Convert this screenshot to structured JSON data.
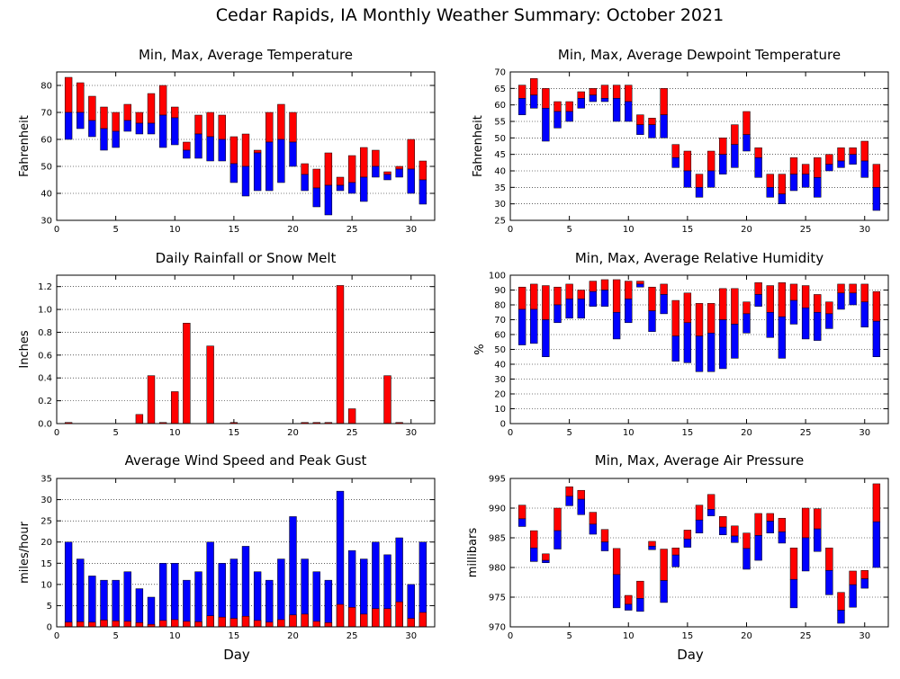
{
  "title": "Cedar Rapids, IA Monthly Weather Summary: October 2021",
  "colors": {
    "max": "#ff0000",
    "min": "#0000ff",
    "edge": "#000000"
  },
  "chart_data": [
    {
      "id": "temperature",
      "type": "bar",
      "title": "Min, Max, Average Temperature",
      "xlabel": "",
      "ylabel": "Fahrenheit",
      "xlim": [
        0,
        32
      ],
      "xticks": [
        0,
        5,
        10,
        15,
        20,
        25,
        30
      ],
      "ylim": [
        30,
        85
      ],
      "yticks": [
        30,
        40,
        50,
        60,
        70,
        80
      ],
      "x": [
        1,
        2,
        3,
        4,
        5,
        6,
        7,
        8,
        9,
        10,
        11,
        12,
        13,
        14,
        15,
        16,
        17,
        18,
        19,
        20,
        21,
        22,
        23,
        24,
        25,
        26,
        27,
        28,
        29,
        30,
        31
      ],
      "series": [
        {
          "name": "max",
          "values": [
            83,
            81,
            76,
            72,
            70,
            73,
            70,
            77,
            80,
            72,
            59,
            69,
            70,
            69,
            61,
            62,
            56,
            70,
            73,
            70,
            51,
            49,
            55,
            46,
            54,
            57,
            56,
            48,
            50,
            60,
            52
          ]
        },
        {
          "name": "avg",
          "values": [
            70,
            70,
            67,
            64,
            63,
            67,
            66,
            66,
            69,
            68,
            56,
            62,
            61,
            60,
            51,
            50,
            55,
            59,
            60,
            59,
            47,
            42,
            43,
            43,
            44,
            46,
            50,
            47,
            49,
            49,
            45
          ]
        },
        {
          "name": "min",
          "values": [
            60,
            64,
            61,
            56,
            57,
            63,
            62,
            62,
            57,
            58,
            53,
            53,
            52,
            52,
            44,
            39,
            41,
            41,
            44,
            50,
            41,
            35,
            32,
            41,
            40,
            37,
            46,
            45,
            46,
            40,
            36
          ]
        }
      ]
    },
    {
      "id": "dewpoint",
      "type": "bar",
      "title": "Min, Max, Average Dewpoint Temperature",
      "xlabel": "",
      "ylabel": "Fahrenheit",
      "xlim": [
        0,
        32
      ],
      "xticks": [
        0,
        5,
        10,
        15,
        20,
        25,
        30
      ],
      "ylim": [
        25,
        70
      ],
      "yticks": [
        25,
        30,
        35,
        40,
        45,
        50,
        55,
        60,
        65,
        70
      ],
      "x": [
        1,
        2,
        3,
        4,
        5,
        6,
        7,
        8,
        9,
        10,
        11,
        12,
        13,
        14,
        15,
        16,
        17,
        18,
        19,
        20,
        21,
        22,
        23,
        24,
        25,
        26,
        27,
        28,
        29,
        30,
        31
      ],
      "series": [
        {
          "name": "max",
          "values": [
            66,
            68,
            65,
            61,
            61,
            64,
            65,
            66,
            66,
            66,
            57,
            56,
            65,
            48,
            46,
            39,
            46,
            50,
            54,
            58,
            47,
            39,
            39,
            44,
            42,
            44,
            45,
            47,
            47,
            49,
            42
          ]
        },
        {
          "name": "avg",
          "values": [
            62,
            63,
            59,
            58,
            58,
            62,
            63,
            62,
            62,
            61,
            54,
            54,
            57,
            44,
            40,
            35,
            40,
            45,
            48,
            51,
            44,
            35,
            33,
            39,
            39,
            38,
            42,
            43,
            45,
            43,
            35
          ]
        },
        {
          "name": "min",
          "values": [
            57,
            59,
            49,
            53,
            55,
            59,
            61,
            61,
            55,
            55,
            51,
            50,
            50,
            41,
            35,
            32,
            35,
            39,
            41,
            46,
            38,
            32,
            30,
            34,
            35,
            32,
            40,
            41,
            42,
            38,
            28
          ]
        }
      ]
    },
    {
      "id": "rainfall",
      "type": "bar",
      "title": "Daily Rainfall or Snow Melt",
      "xlabel": "",
      "ylabel": "Inches",
      "xlim": [
        0,
        32
      ],
      "xticks": [
        0,
        5,
        10,
        15,
        20,
        25,
        30
      ],
      "ylim": [
        0,
        1.3
      ],
      "yticks": [
        0.0,
        0.2,
        0.4,
        0.6,
        0.8,
        1.0,
        1.2
      ],
      "x": [
        1,
        2,
        3,
        4,
        5,
        6,
        7,
        8,
        9,
        10,
        11,
        12,
        13,
        14,
        15,
        16,
        17,
        18,
        19,
        20,
        21,
        22,
        23,
        24,
        25,
        26,
        27,
        28,
        29,
        30,
        31
      ],
      "values": [
        0.01,
        0,
        0,
        0,
        0,
        0,
        0.08,
        0.42,
        0.01,
        0.28,
        0.88,
        0,
        0.68,
        0,
        0.01,
        0,
        0,
        0,
        0,
        0,
        0.01,
        0.01,
        0.01,
        1.21,
        0.13,
        0,
        0,
        0.42,
        0.01,
        0,
        0
      ]
    },
    {
      "id": "humidity",
      "type": "bar",
      "title": "Min, Max, Average Relative Humidity",
      "xlabel": "",
      "ylabel": "%",
      "xlim": [
        0,
        32
      ],
      "xticks": [
        0,
        5,
        10,
        15,
        20,
        25,
        30
      ],
      "ylim": [
        0,
        100
      ],
      "yticks": [
        0,
        10,
        20,
        30,
        40,
        50,
        60,
        70,
        80,
        90,
        100
      ],
      "x": [
        1,
        2,
        3,
        4,
        5,
        6,
        7,
        8,
        9,
        10,
        11,
        12,
        13,
        14,
        15,
        16,
        17,
        18,
        19,
        20,
        21,
        22,
        23,
        24,
        25,
        26,
        27,
        28,
        29,
        30,
        31
      ],
      "series": [
        {
          "name": "max",
          "values": [
            92,
            94,
            93,
            92,
            94,
            90,
            96,
            97,
            97,
            96,
            96,
            92,
            94,
            83,
            88,
            81,
            81,
            91,
            91,
            82,
            95,
            93,
            95,
            94,
            93,
            87,
            82,
            94,
            94,
            94,
            89
          ]
        },
        {
          "name": "avg",
          "values": [
            77,
            77,
            70,
            80,
            84,
            84,
            89,
            90,
            75,
            84,
            94,
            76,
            87,
            59,
            68,
            59,
            61,
            70,
            67,
            74,
            87,
            75,
            72,
            83,
            78,
            75,
            74,
            88,
            88,
            82,
            69
          ]
        },
        {
          "name": "min",
          "values": [
            53,
            54,
            45,
            68,
            71,
            71,
            79,
            79,
            57,
            68,
            92,
            62,
            74,
            42,
            41,
            35,
            35,
            37,
            44,
            61,
            79,
            58,
            44,
            67,
            57,
            56,
            64,
            77,
            80,
            65,
            45
          ]
        }
      ]
    },
    {
      "id": "wind",
      "type": "bar",
      "title": "Average Wind Speed and Peak Gust",
      "xlabel": "Day",
      "ylabel": "miles/hour",
      "xlim": [
        0,
        32
      ],
      "xticks": [
        0,
        5,
        10,
        15,
        20,
        25,
        30
      ],
      "ylim": [
        0,
        35
      ],
      "yticks": [
        0,
        5,
        10,
        15,
        20,
        25,
        30,
        35
      ],
      "x": [
        1,
        2,
        3,
        4,
        5,
        6,
        7,
        8,
        9,
        10,
        11,
        12,
        13,
        14,
        15,
        16,
        17,
        18,
        19,
        20,
        21,
        22,
        23,
        24,
        25,
        26,
        27,
        28,
        29,
        30,
        31
      ],
      "series": [
        {
          "name": "peak gust",
          "values": [
            20,
            16,
            12,
            11,
            11,
            13,
            9,
            7,
            15,
            15,
            11,
            13,
            20,
            15,
            16,
            19,
            13,
            11,
            16,
            26,
            16,
            13,
            11,
            32,
            18,
            16,
            20,
            17,
            21,
            10,
            20
          ]
        },
        {
          "name": "average speed",
          "values": [
            1.1,
            1.2,
            1.1,
            1.6,
            1.4,
            1.3,
            1.0,
            0.6,
            1.5,
            1.7,
            1.3,
            1.2,
            2.6,
            2.3,
            2.0,
            2.5,
            1.5,
            1.1,
            1.7,
            2.8,
            3.0,
            1.3,
            1.0,
            5.3,
            4.6,
            3.0,
            4.3,
            4.3,
            5.9,
            2.0,
            3.4
          ]
        }
      ]
    },
    {
      "id": "pressure",
      "type": "bar",
      "title": "Min, Max, Average Air Pressure",
      "xlabel": "Day",
      "ylabel": "millibars",
      "xlim": [
        0,
        32
      ],
      "xticks": [
        0,
        5,
        10,
        15,
        20,
        25,
        30
      ],
      "ylim": [
        970,
        995
      ],
      "yticks": [
        970,
        975,
        980,
        985,
        990,
        995
      ],
      "x": [
        1,
        2,
        3,
        4,
        5,
        6,
        7,
        8,
        9,
        10,
        11,
        12,
        13,
        14,
        15,
        16,
        17,
        18,
        19,
        20,
        21,
        22,
        23,
        24,
        25,
        26,
        27,
        28,
        29,
        30,
        31
      ],
      "series": [
        {
          "name": "max",
          "values": [
            990.5,
            986.2,
            982.3,
            990.0,
            993.6,
            993.0,
            989.3,
            986.4,
            983.2,
            975.3,
            977.7,
            984.4,
            983.1,
            983.3,
            986.3,
            990.5,
            992.3,
            988.6,
            987.0,
            985.8,
            989.1,
            989.1,
            988.3,
            983.3,
            990.0,
            989.9,
            983.3,
            975.8,
            979.4,
            979.5,
            994.1
          ]
        },
        {
          "name": "avg",
          "values": [
            988.2,
            983.3,
            981.2,
            986.2,
            992.0,
            991.5,
            987.3,
            984.3,
            978.8,
            973.8,
            974.8,
            983.6,
            977.8,
            982.1,
            984.8,
            988.0,
            989.8,
            986.8,
            985.3,
            983.2,
            985.4,
            987.8,
            986.0,
            978.0,
            985.0,
            986.5,
            979.5,
            972.8,
            977.1,
            978.1,
            987.7
          ]
        },
        {
          "name": "min",
          "values": [
            986.9,
            981.0,
            980.8,
            983.1,
            990.4,
            988.9,
            985.6,
            982.8,
            973.2,
            972.8,
            972.6,
            983.0,
            974.1,
            980.1,
            983.4,
            985.8,
            988.7,
            985.5,
            984.2,
            979.7,
            981.2,
            985.8,
            984.1,
            973.2,
            979.4,
            982.7,
            975.4,
            970.6,
            973.3,
            976.5,
            980.0
          ]
        }
      ]
    }
  ]
}
